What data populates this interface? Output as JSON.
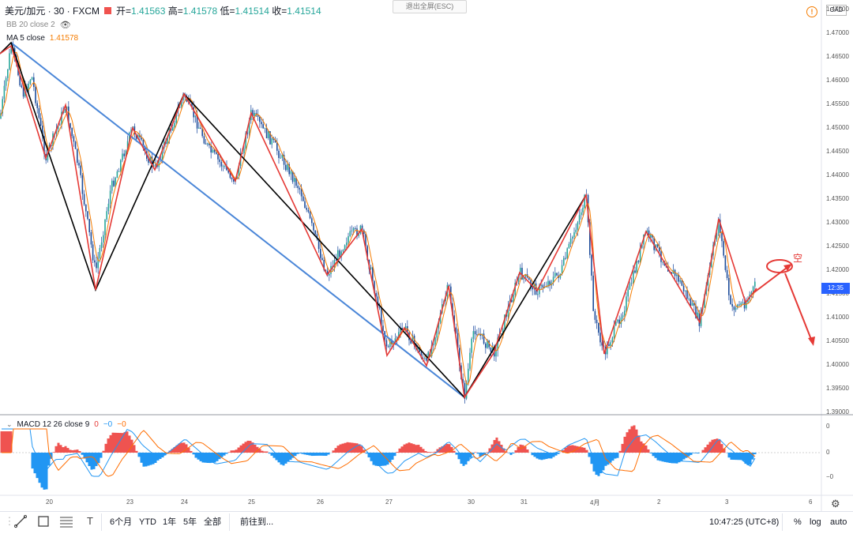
{
  "header": {
    "symbol": "美元/加元 · 30 · FXCM",
    "open_label": "开=",
    "open": "1.41563",
    "high_label": "高=",
    "high": "1.41578",
    "low_label": "低=",
    "low": "1.41514",
    "close_label": "收=",
    "close": "1.41514"
  },
  "indicators": {
    "bb": "BB 20 close 2",
    "ma_label": "MA 5 close",
    "ma_value": "1.41578",
    "macd_label": "MACD 12 26 close 9",
    "macd_v1": "0",
    "macd_v2": "−0",
    "macd_v3": "−0"
  },
  "exit_fullscreen": "退出全屏(ESC)",
  "currency": "CAD",
  "warning_icon": "!",
  "current_price_label": "12:35",
  "short_label": "空",
  "price_axis": [
    "1.47500",
    "1.47000",
    "1.46500",
    "1.46000",
    "1.45500",
    "1.45000",
    "1.44500",
    "1.44000",
    "1.43500",
    "1.43000",
    "1.42500",
    "1.42000",
    "1.41500",
    "1.41000",
    "1.40500",
    "1.40000",
    "1.39500",
    "1.39000"
  ],
  "macd_axis": [
    "0",
    "0",
    "−0"
  ],
  "date_axis": [
    "20",
    "23",
    "24",
    "25",
    "26",
    "27",
    "30",
    "31",
    "4月",
    "2",
    "3",
    "6"
  ],
  "toolbar": {
    "ranges": [
      "6个月",
      "YTD",
      "1年",
      "5年",
      "全部"
    ],
    "goto": "前往到...",
    "time": "10:47:25 (UTC+8)",
    "percent": "%",
    "log": "log",
    "auto": "auto"
  },
  "colors": {
    "up": "#26a69a",
    "candle": "#2f5aa8",
    "ma": "#f57c00",
    "zigzag_red": "#e53935",
    "zigzag_black": "#000000",
    "trendline_blue": "#4a86d8",
    "macd_line": "#2196f3",
    "signal_line": "#ff6d00",
    "hist_pos": "#ef5350",
    "hist_neg": "#2196f3"
  },
  "chart_data": {
    "type": "line",
    "title": "美元/加元 · 30 · FXCM",
    "x": [
      "20",
      "23",
      "24",
      "25",
      "26",
      "27",
      "30",
      "31",
      "4月",
      "2",
      "3"
    ],
    "series": [],
    "ylim": [
      1.39,
      1.475
    ]
  }
}
